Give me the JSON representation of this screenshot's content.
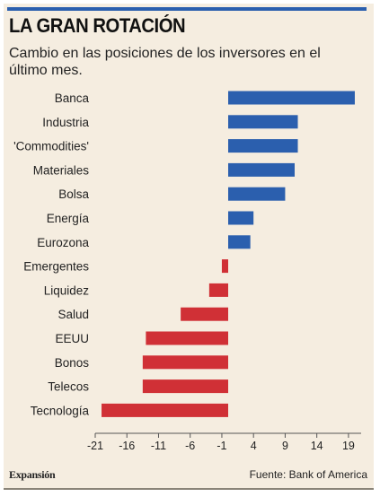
{
  "header": {
    "title": "LA GRAN ROTACIÓN",
    "subtitle": "Cambio en las posiciones de los inversores en el último mes."
  },
  "footer": {
    "brand": "Expansión",
    "source": "Fuente: Bank of America"
  },
  "colors": {
    "positive": "#2b5fae",
    "negative": "#d03036",
    "background": "#f5ede0",
    "accent_bar": "#2b5fae"
  },
  "chart_data": {
    "type": "bar",
    "orientation": "horizontal",
    "categories": [
      "Banca",
      "Industria",
      "'Commodities'",
      "Materiales",
      "Bolsa",
      "Energía",
      "Eurozona",
      "Emergentes",
      "Liquidez",
      "Salud",
      "EEUU",
      "Bonos",
      "Telecos",
      "Tecnología"
    ],
    "values": [
      20,
      11,
      11,
      10.5,
      9,
      4,
      3.5,
      -1,
      -3,
      -7.5,
      -13,
      -13.5,
      -13.5,
      -20
    ],
    "xticks": [
      -21,
      -16,
      -11,
      -6,
      -1,
      4,
      9,
      14,
      19
    ],
    "xlim": [
      -21,
      21
    ],
    "grid": false,
    "legend": "none"
  }
}
